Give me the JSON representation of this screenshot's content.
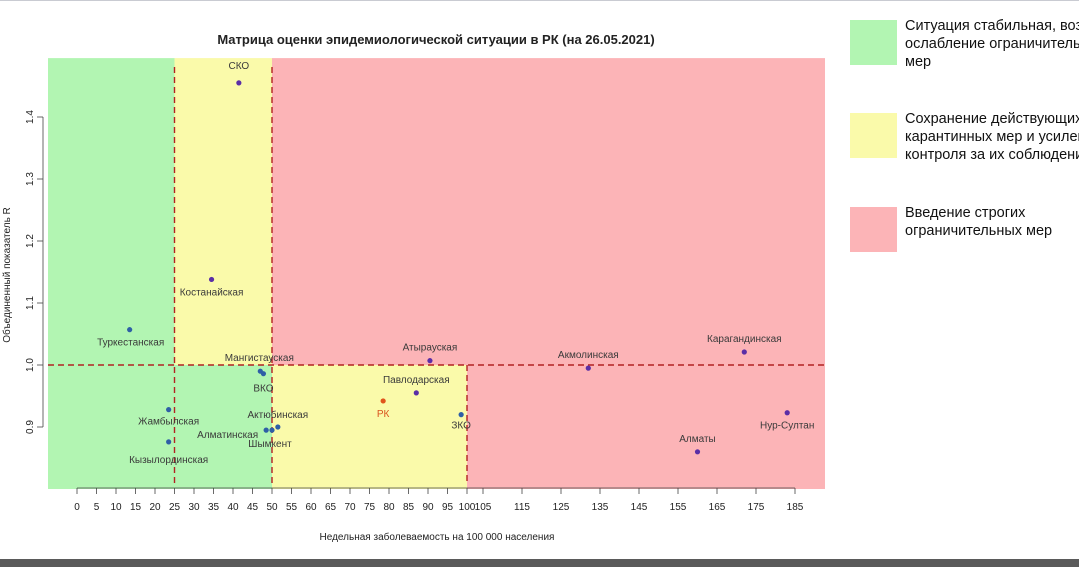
{
  "chart_data": {
    "type": "scatter",
    "title": "Матрица оценки эпидемиологической ситуации в РК (на 26.05.2021)",
    "xlabel": "Недельная заболеваемость на 100 000 населения",
    "ylabel": "Объединенный показатель R",
    "xlim": [
      -7,
      191
    ],
    "ylim": [
      0.8,
      1.495
    ],
    "x_ticks": [
      0,
      5,
      10,
      15,
      20,
      25,
      30,
      35,
      40,
      45,
      50,
      55,
      60,
      65,
      70,
      75,
      80,
      85,
      90,
      95,
      100,
      105,
      115,
      125,
      135,
      145,
      155,
      165,
      175,
      185
    ],
    "y_ticks": [
      0.9,
      1.0,
      1.1,
      1.2,
      1.3,
      1.4
    ],
    "zones": [
      {
        "x_min": -7,
        "x_max": 25,
        "y_min": 0.8,
        "y_max": 1.495,
        "color": "#b2f5b2"
      },
      {
        "x_min": 25,
        "x_max": 50,
        "y_min": 1.0,
        "y_max": 1.495,
        "color": "#fafaaa"
      },
      {
        "x_min": 25,
        "x_max": 50,
        "y_min": 0.8,
        "y_max": 1.0,
        "color": "#b2f5b2"
      },
      {
        "x_min": 50,
        "x_max": 100,
        "y_min": 0.8,
        "y_max": 1.0,
        "color": "#fafaaa"
      },
      {
        "x_min": 50,
        "x_max": 191,
        "y_min": 1.0,
        "y_max": 1.495,
        "color": "#fcb4b7"
      },
      {
        "x_min": 100,
        "x_max": 191,
        "y_min": 0.8,
        "y_max": 1.0,
        "color": "#fcb4b7"
      }
    ],
    "threshold_lines": {
      "x": [
        25,
        50,
        100
      ],
      "y": 1.0,
      "color": "#b22222"
    },
    "points": [
      {
        "label": "СКО",
        "x": 41.5,
        "y": 1.455,
        "color": "#5a2ea6"
      },
      {
        "label": "Костанайская",
        "x": 34.5,
        "y": 1.138,
        "color": "#5a2ea6"
      },
      {
        "label": "Туркестанская",
        "x": 13.5,
        "y": 1.057,
        "color": "#2e5fa6"
      },
      {
        "label": "Мангистауская",
        "x": 47,
        "y": 0.99,
        "color": "#2e5fa6"
      },
      {
        "label": "ВКО",
        "x": 47.8,
        "y": 0.986,
        "color": "#2e5fa6"
      },
      {
        "label": "Жамбылская",
        "x": 23.5,
        "y": 0.928,
        "color": "#2e5fa6"
      },
      {
        "label": "Кызылординская",
        "x": 23.5,
        "y": 0.876,
        "color": "#2e5fa6"
      },
      {
        "label": "Алматинская",
        "x": 48.5,
        "y": 0.895,
        "color": "#2e5fa6"
      },
      {
        "label": "Актюбинская",
        "x": 51.5,
        "y": 0.9,
        "color": "#2e5fa6"
      },
      {
        "label": "Шымкент",
        "x": 50,
        "y": 0.895,
        "color": "#2e5fa6"
      },
      {
        "label": "РК",
        "x": 78.5,
        "y": 0.942,
        "color": "#e0541c"
      },
      {
        "label": "Павлодарская",
        "x": 87,
        "y": 0.955,
        "color": "#5a2ea6"
      },
      {
        "label": "Атырауская",
        "x": 90.5,
        "y": 1.007,
        "color": "#5a2ea6"
      },
      {
        "label": "ЗКО",
        "x": 98.5,
        "y": 0.92,
        "color": "#2e5fa6"
      },
      {
        "label": "Акмолинская",
        "x": 132,
        "y": 0.995,
        "color": "#5a2ea6"
      },
      {
        "label": "Карагандинская",
        "x": 172,
        "y": 1.021,
        "color": "#5a2ea6"
      },
      {
        "label": "Нур-Султан",
        "x": 183,
        "y": 0.923,
        "color": "#5a2ea6"
      },
      {
        "label": "Алматы",
        "x": 160,
        "y": 0.86,
        "color": "#5a2ea6"
      }
    ],
    "grid": false
  },
  "legend": [
    {
      "text": "Ситуация стабильная, возможно ослабление ограничительных мер",
      "color": "#b2f5b2"
    },
    {
      "text": "Сохранение действующих карантинных мер и усиление контроля за их соблюдением",
      "color": "#fafaaa"
    },
    {
      "text": "Введение строгих ограничительных мер",
      "color": "#fcb4b7"
    }
  ]
}
